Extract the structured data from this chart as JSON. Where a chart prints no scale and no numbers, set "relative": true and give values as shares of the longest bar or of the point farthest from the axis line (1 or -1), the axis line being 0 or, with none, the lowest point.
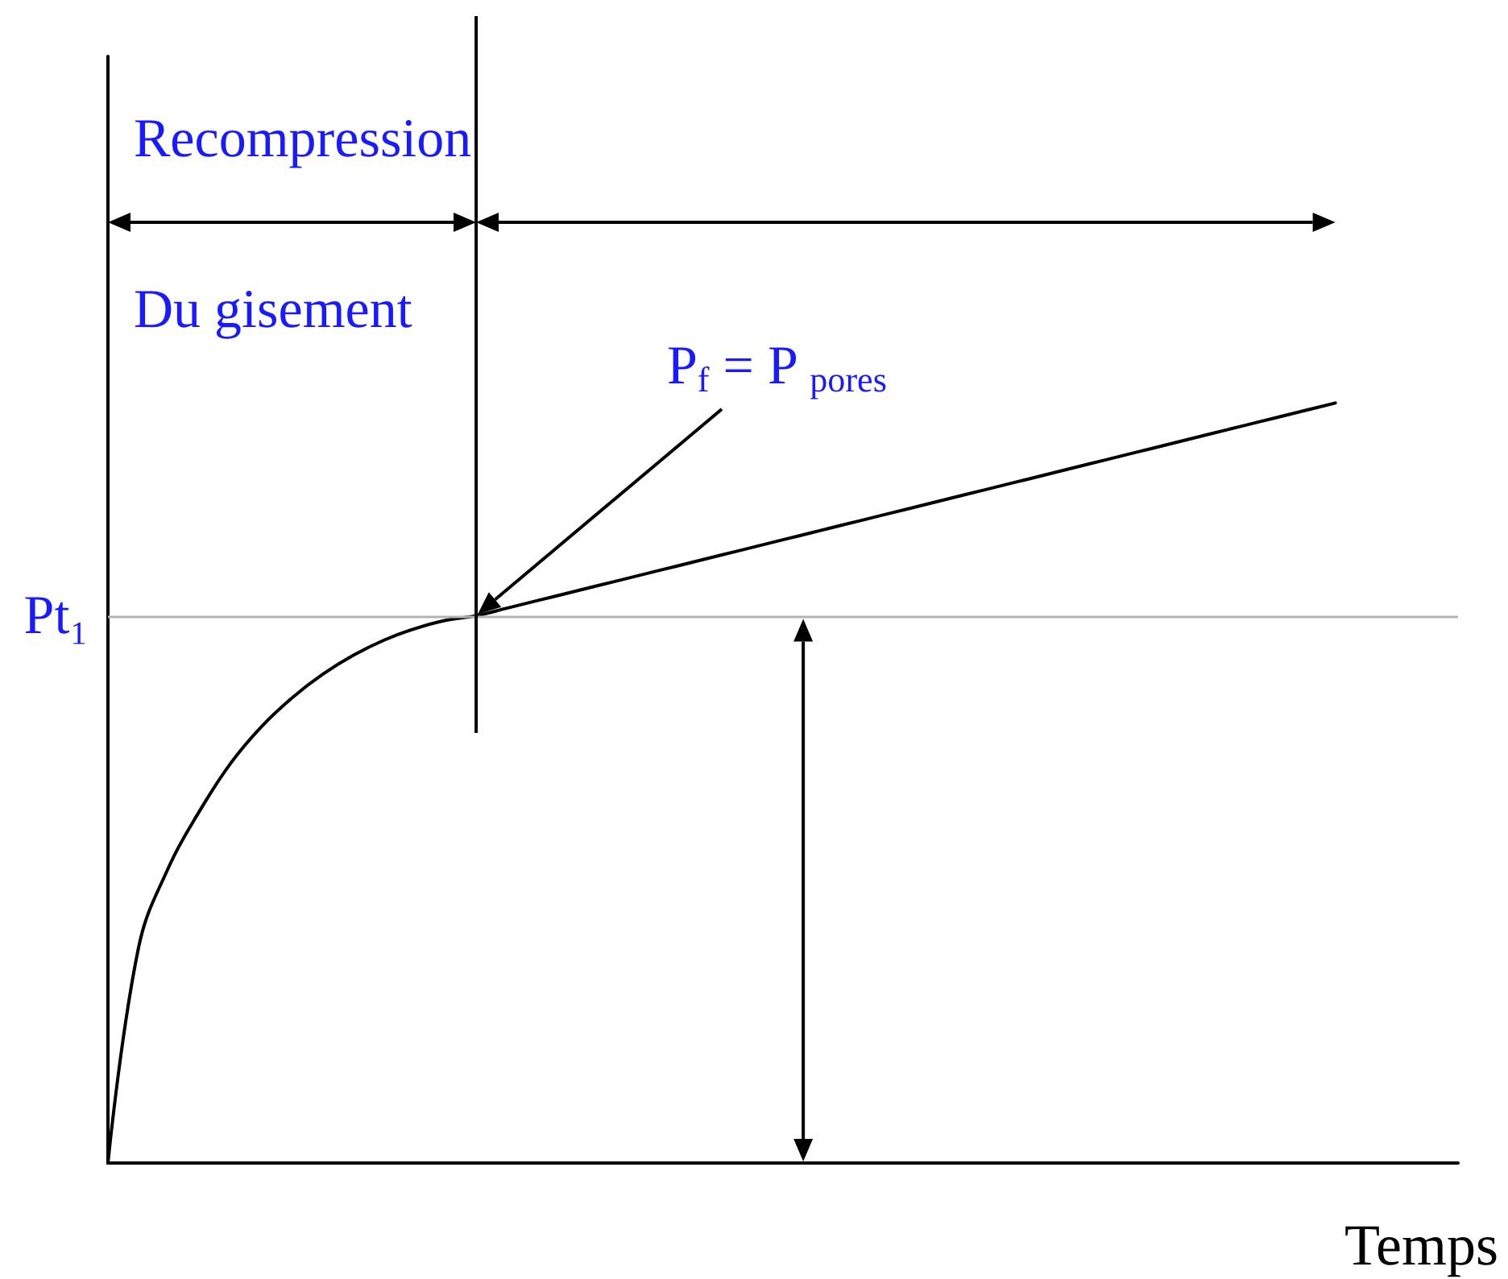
{
  "chart_data": {
    "type": "line",
    "xlabel": "Temps",
    "categories": [
      null,
      null,
      null,
      null,
      null,
      null,
      null,
      null,
      null,
      null,
      null,
      null,
      null,
      null,
      null,
      null,
      null,
      null,
      null,
      null,
      null,
      null,
      null,
      null,
      null,
      null,
      null,
      null,
      null,
      null,
      null,
      null,
      null,
      null,
      null,
      null,
      null,
      null,
      null,
      null,
      null,
      null,
      null,
      null,
      null
    ],
    "values": [
      0,
      0.284,
      0.391,
      0.464,
      0.526,
      0.574,
      0.612,
      0.643,
      0.668,
      0.688,
      0.703,
      0.714,
      0.72,
      0.73,
      0.74,
      0.75,
      0.76,
      0.77,
      0.78,
      0.79,
      0.8,
      0.81,
      0.82,
      0.83,
      0.84,
      0.85,
      0.86,
      0.87,
      0.88,
      0.89,
      0.9,
      0.91,
      0.92,
      0.93,
      0.94,
      0.95,
      0.96,
      0.97,
      0.98,
      0.99,
      1.0,
      null,
      null,
      null,
      null
    ],
    "color": "#000000",
    "relative": true,
    "marker": "none",
    "ref_lines": [
      {
        "axis": "y",
        "value": 0.72,
        "label": "Pt₁",
        "color": "#b3b3b3"
      }
    ],
    "annotations": [
      "Recompression",
      "Du gisement",
      "P$_{f}$ = P $_{pores}$"
    ]
  }
}
